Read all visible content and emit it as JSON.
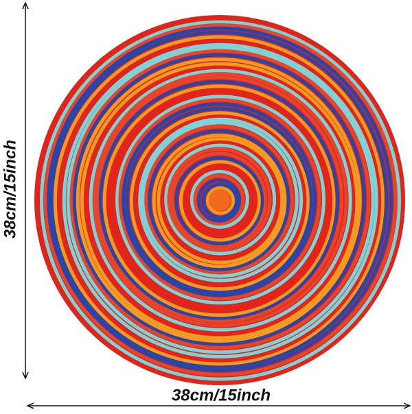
{
  "dimensions": {
    "height": "38cm/15inch",
    "width": "38cm/15inch"
  }
}
